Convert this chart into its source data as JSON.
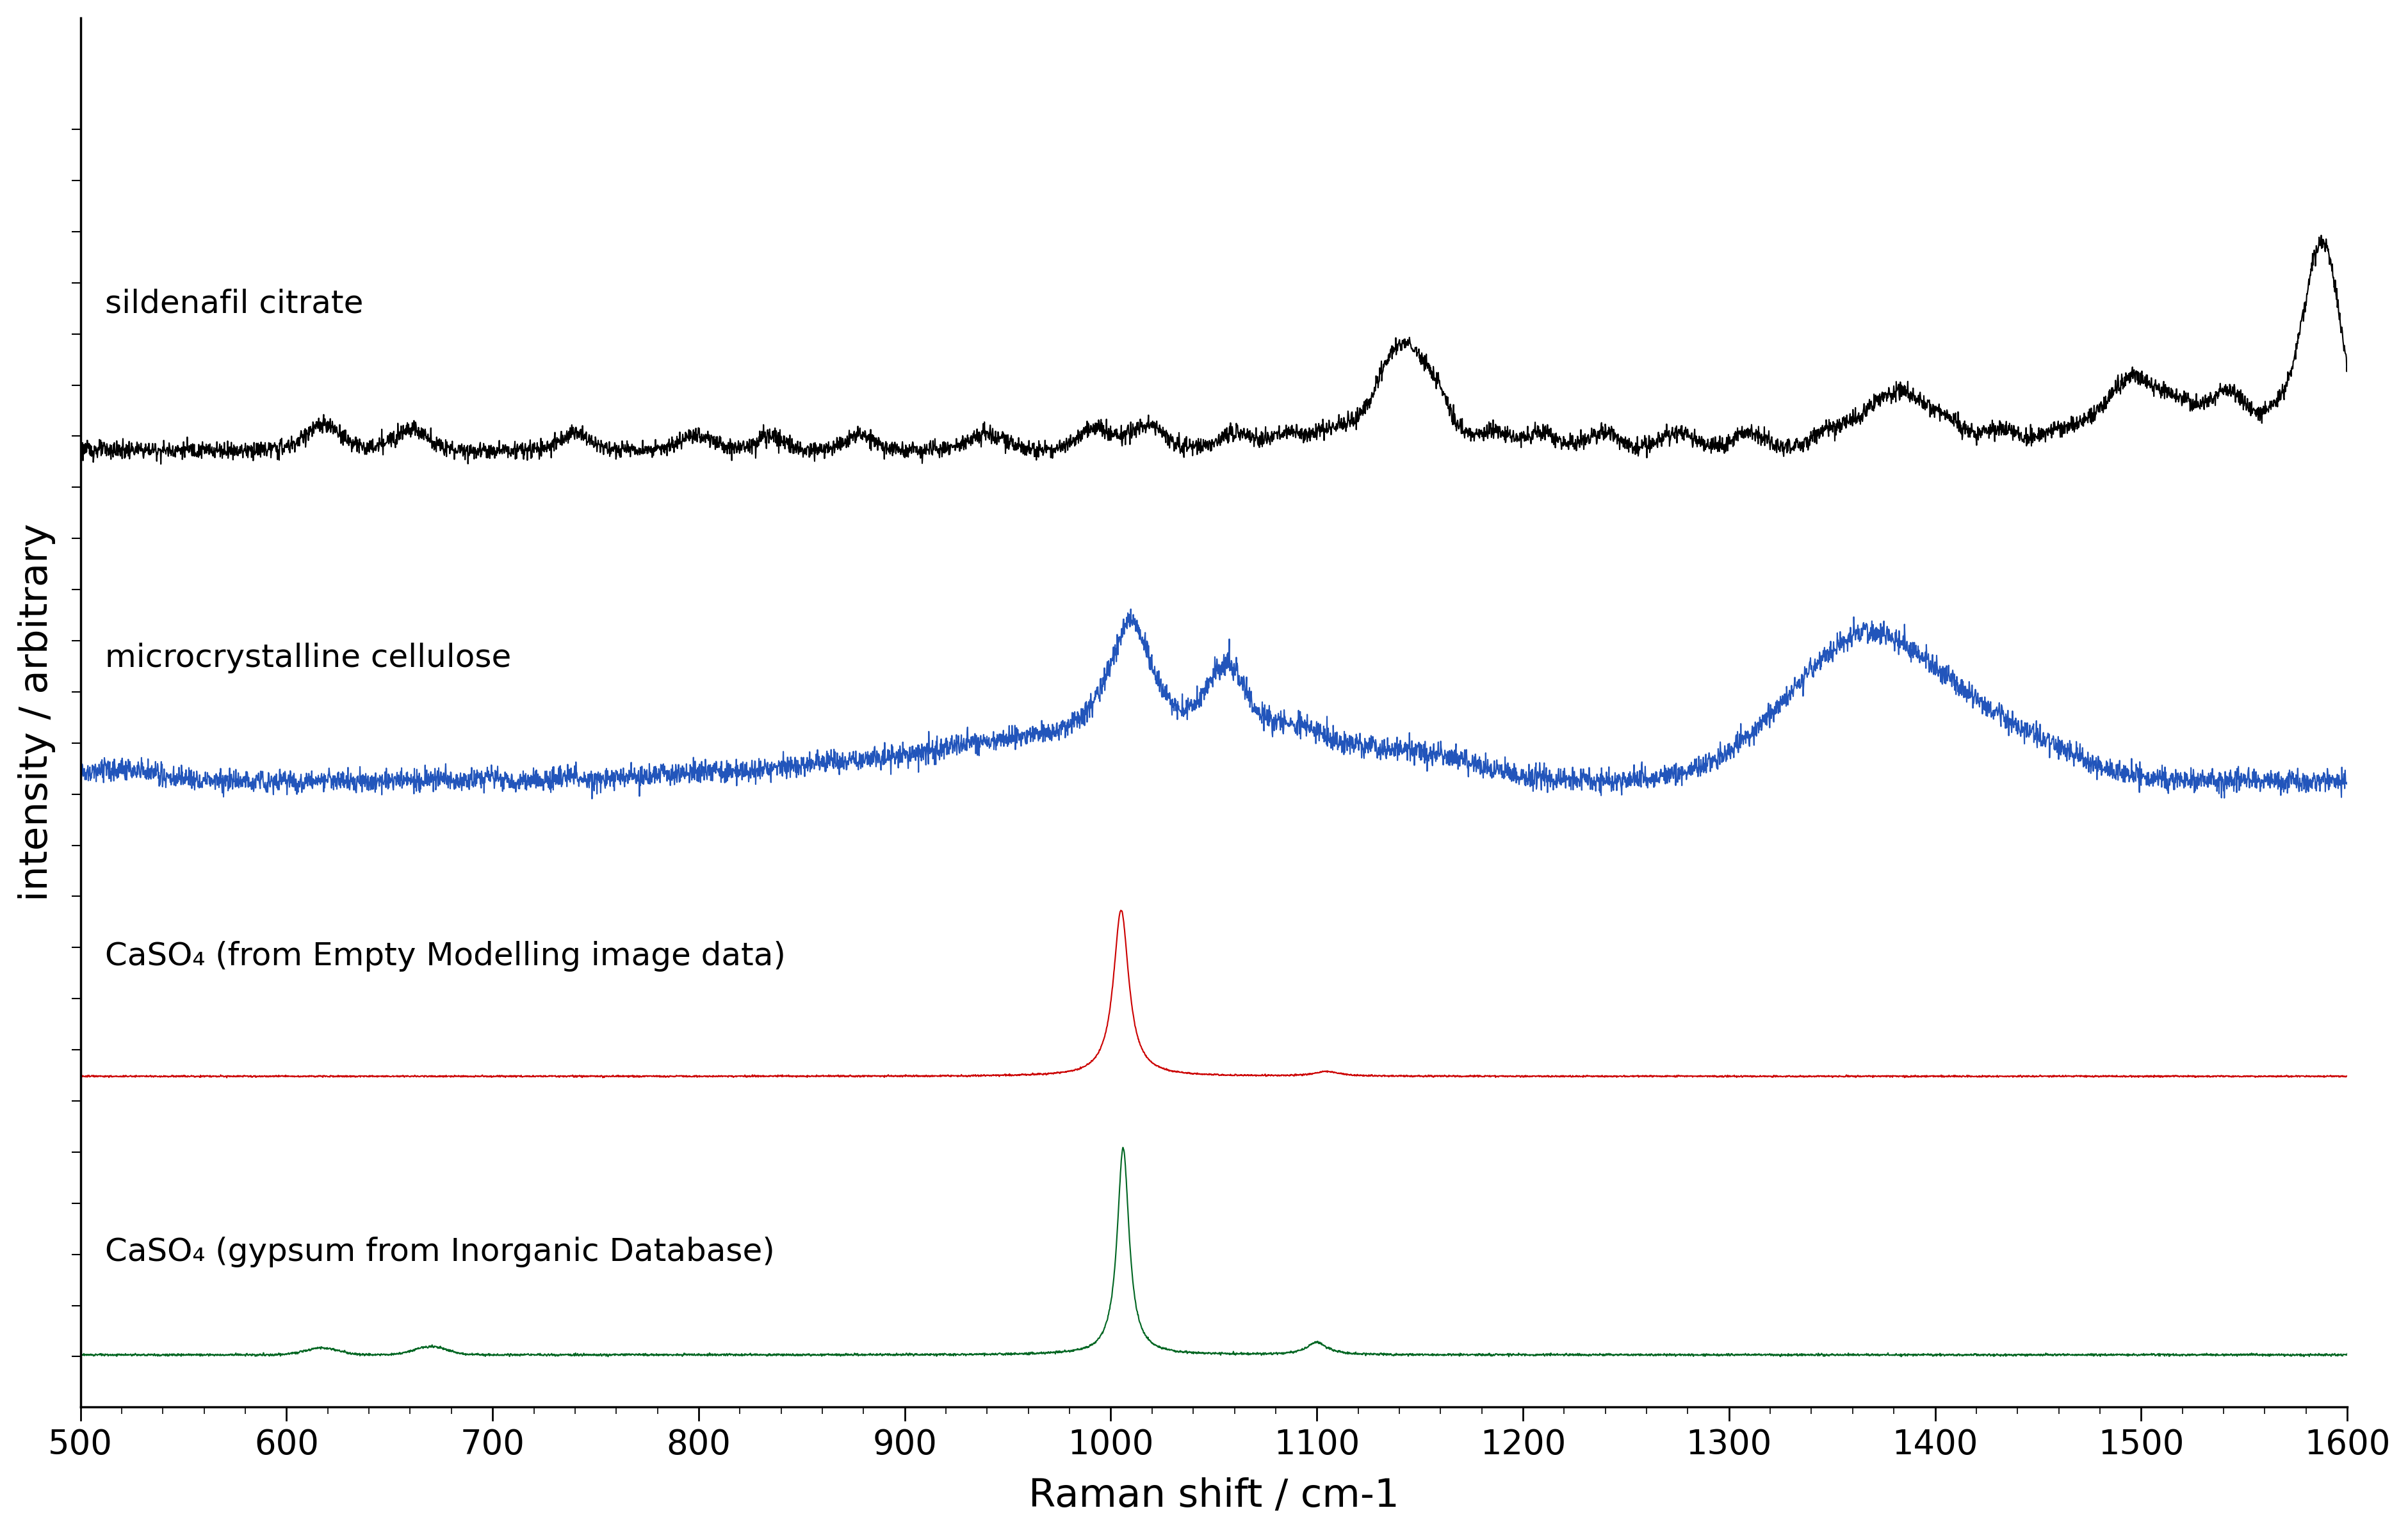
{
  "x_min": 500,
  "x_max": 1600,
  "xlabel": "Raman shift / cm-1",
  "ylabel": "intensity / arbitrary",
  "background_color": "#ffffff",
  "line_colors": [
    "#000000",
    "#2255bb",
    "#cc0000",
    "#006622"
  ],
  "label_color": "#000000",
  "labels": [
    "sildenafil citrate",
    "microcrystalline cellulose",
    "CaSO₄ (from Empty Modelling image data)",
    "CaSO₄ (gypsum from Inorganic Database)"
  ],
  "offsets": [
    3.2,
    2.0,
    1.0,
    0.0
  ],
  "xlabel_fontsize": 44,
  "ylabel_fontsize": 44,
  "tick_fontsize": 38,
  "label_fontsize": 36
}
